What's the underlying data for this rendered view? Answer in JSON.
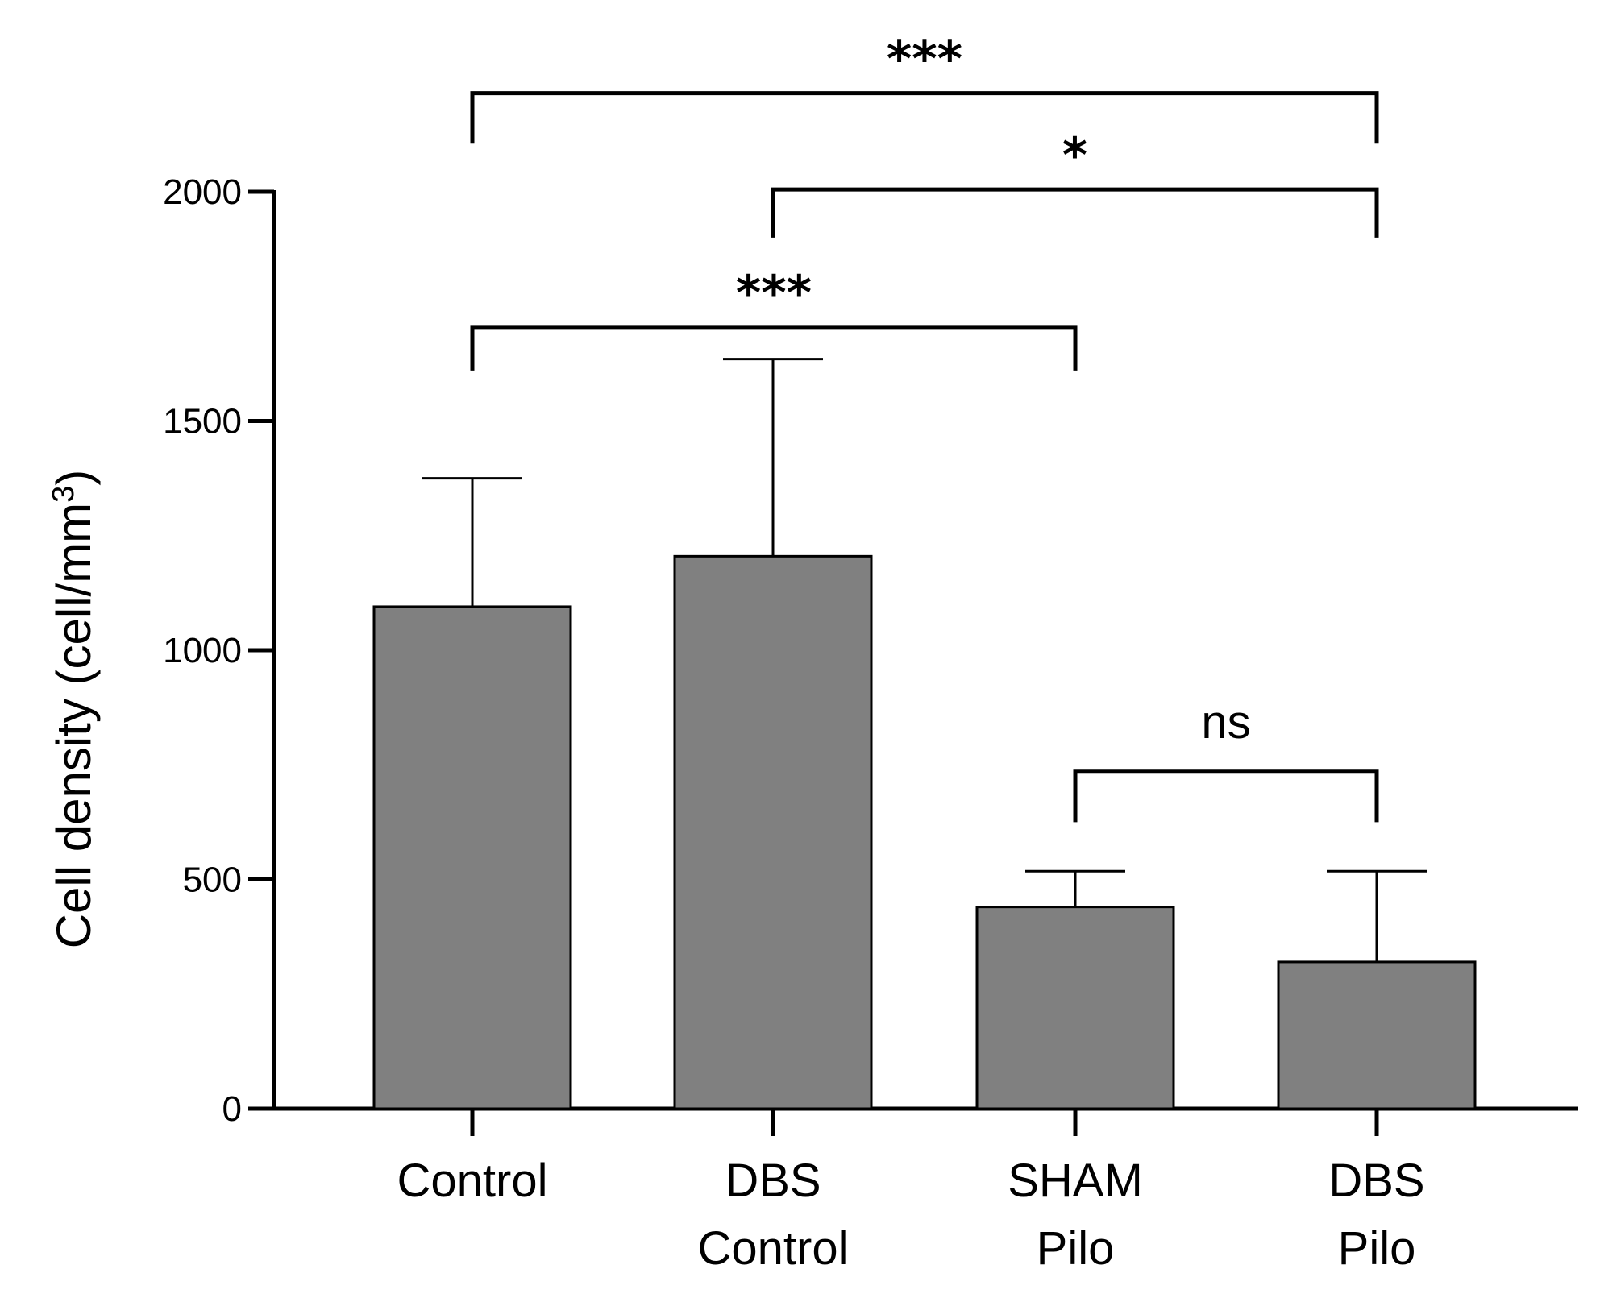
{
  "chart_data": {
    "type": "bar",
    "title": "",
    "xlabel": "",
    "ylabel": "Cell density (cell/mm",
    "ylabel_superscript": "3",
    "ylabel_close": ")",
    "ylim": [
      0,
      2000
    ],
    "yticks": [
      0,
      500,
      1000,
      1500,
      2000
    ],
    "ytick_labels": [
      "0",
      "500",
      "1000",
      "1500",
      "2000"
    ],
    "categories": [
      {
        "lines": [
          "Control"
        ]
      },
      {
        "lines": [
          "DBS",
          "Control"
        ]
      },
      {
        "lines": [
          "SHAM",
          "Pilo"
        ]
      },
      {
        "lines": [
          "DBS",
          "Pilo"
        ]
      }
    ],
    "values": [
      1095,
      1205,
      440,
      320
    ],
    "error_upper": [
      1375,
      1635,
      518,
      518
    ],
    "bar_color": "#808080",
    "significance": [
      {
        "from": 0,
        "to": 3,
        "label": "***",
        "bar_y": 2215,
        "left_drop": 2105,
        "right_drop": 2105
      },
      {
        "from": 1,
        "to": 3,
        "label": "*",
        "bar_y": 2005,
        "left_drop": 1900,
        "right_drop": 1900
      },
      {
        "from": 0,
        "to": 2,
        "label": "***",
        "bar_y": 1705,
        "left_drop": 1610,
        "right_drop": 1610
      },
      {
        "from": 2,
        "to": 3,
        "label": "ns",
        "bar_y": 735,
        "left_drop": 625,
        "right_drop": 625
      }
    ]
  }
}
